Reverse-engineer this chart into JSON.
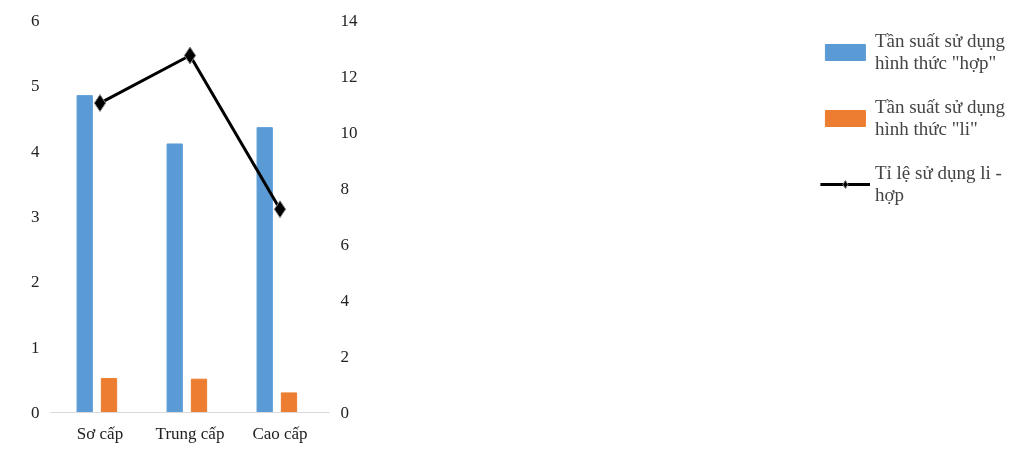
{
  "chart_data": {
    "type": "bar",
    "categories": [
      "Sơ cấp",
      "Trung cấp",
      "Cao cấp"
    ],
    "series": [
      {
        "name": "Tần suất sử dụng hình thức \"hợp\"",
        "color": "#5b9bd5",
        "values": [
          4.85,
          4.11,
          4.36
        ]
      },
      {
        "name": "Tần suất sử dụng hình thức \"li\"",
        "color": "#ed7d31",
        "values": [
          0.52,
          0.51,
          0.3
        ]
      },
      {
        "name": "Tỉ lệ sử dụng li - hợp",
        "type": "line",
        "axis": "y2",
        "color": "#000000",
        "marker": "diamond",
        "values": [
          11.05,
          12.75,
          7.26
        ]
      }
    ],
    "ylim": [
      0,
      6
    ],
    "yticks": [
      0,
      1,
      2,
      3,
      4,
      5,
      6
    ],
    "y2lim": [
      0,
      14
    ],
    "y2ticks": [
      0,
      2,
      4,
      6,
      8,
      10,
      12,
      14
    ],
    "grid": false,
    "legend": "right"
  }
}
